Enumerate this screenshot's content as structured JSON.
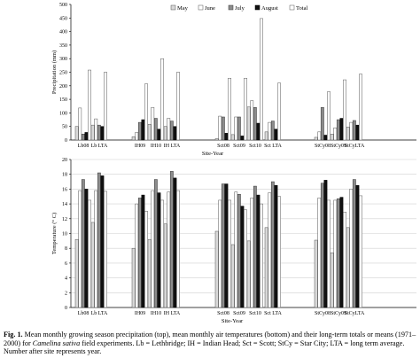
{
  "chart_data": [
    {
      "type": "bar",
      "ylabel": "Precipitation (mm)",
      "xlabel": "Site-Year",
      "ylim": [
        0,
        500
      ],
      "yticks": [
        0,
        50,
        100,
        150,
        200,
        250,
        300,
        350,
        400,
        450,
        500
      ],
      "legend_position": "top-center",
      "grid": false,
      "series_names": [
        "May",
        "June",
        "July",
        "August",
        "Total"
      ],
      "series_colors": [
        "#d8d8d8",
        "#ffffff",
        "#8c8c8c",
        "#111111",
        "#ffffff"
      ],
      "groups": [
        {
          "label": "Lb08",
          "values": [
            50,
            118,
            22,
            28,
            258
          ]
        },
        {
          "label": "Lb LTA",
          "values": [
            55,
            78,
            55,
            50,
            250
          ]
        },
        {
          "label": "IH09",
          "values": [
            12,
            28,
            65,
            75,
            207
          ]
        },
        {
          "label": "IH10",
          "values": [
            58,
            120,
            80,
            40,
            300
          ]
        },
        {
          "label": "IH LTA",
          "values": [
            50,
            80,
            70,
            50,
            250
          ]
        },
        {
          "label": "Sct08",
          "values": [
            5,
            88,
            85,
            25,
            228
          ]
        },
        {
          "label": "Sct09",
          "values": [
            20,
            85,
            85,
            15,
            228
          ]
        },
        {
          "label": "Sct10",
          "values": [
            122,
            145,
            120,
            62,
            448
          ]
        },
        {
          "label": "Sct LTA",
          "values": [
            30,
            65,
            70,
            40,
            210
          ]
        },
        {
          "label": "StCy08",
          "values": [
            10,
            30,
            120,
            18,
            178
          ]
        },
        {
          "label": "StCy09",
          "values": [
            22,
            45,
            75,
            80,
            222
          ]
        },
        {
          "label": "StCyLTA",
          "values": [
            48,
            65,
            72,
            55,
            243
          ]
        }
      ]
    },
    {
      "type": "bar",
      "ylabel": "Temperature (° C)",
      "xlabel": "Site-Year",
      "ylim": [
        0,
        20
      ],
      "yticks": [
        0,
        2,
        4,
        6,
        8,
        10,
        12,
        14,
        16,
        18,
        20
      ],
      "grid": true,
      "series_names": [
        "May",
        "June",
        "July",
        "August",
        "Total"
      ],
      "groups": [
        {
          "label": "Lb08",
          "values": [
            9.2,
            15.8,
            17.3,
            16.0,
            14.5
          ]
        },
        {
          "label": "Lb LTA",
          "values": [
            11.5,
            15.8,
            18.2,
            17.8,
            15.7
          ]
        },
        {
          "label": "IH09",
          "values": [
            8.0,
            14.0,
            14.8,
            15.2,
            13.0
          ]
        },
        {
          "label": "IH10",
          "values": [
            9.2,
            15.8,
            17.3,
            15.5,
            14.5
          ]
        },
        {
          "label": "IH LTA",
          "values": [
            11.3,
            15.6,
            18.4,
            17.5,
            15.8
          ]
        },
        {
          "label": "Sct08",
          "values": [
            10.3,
            14.5,
            16.7,
            16.7,
            14.5
          ]
        },
        {
          "label": "Sct09",
          "values": [
            8.5,
            15.6,
            15.3,
            13.7,
            13.2
          ]
        },
        {
          "label": "Sct10",
          "values": [
            9.0,
            14.8,
            16.4,
            15.2,
            14.0
          ]
        },
        {
          "label": "Sct LTA",
          "values": [
            10.8,
            15.5,
            17.0,
            16.5,
            15.0
          ]
        },
        {
          "label": "StCy08",
          "values": [
            9.1,
            14.8,
            16.8,
            17.2,
            14.5
          ]
        },
        {
          "label": "StCy09",
          "values": [
            7.4,
            14.5,
            14.7,
            14.9,
            12.9
          ]
        },
        {
          "label": "StCyLTA",
          "values": [
            10.8,
            16.0,
            17.3,
            16.5,
            15.1
          ]
        }
      ]
    }
  ],
  "caption": {
    "label": "Fig. 1.",
    "text_before": " Mean monthly growing season precipitation (top), mean monthly air temperatures (bottom) and their long-term totals or means (1971–2000) for ",
    "species": "Camelina sativa",
    "text_after": " field experiments. Lb = Lethbridge; IH = Indian Head; Sct = Scott; StCy = Star City; LTA = long term average. Number after site represents year."
  }
}
